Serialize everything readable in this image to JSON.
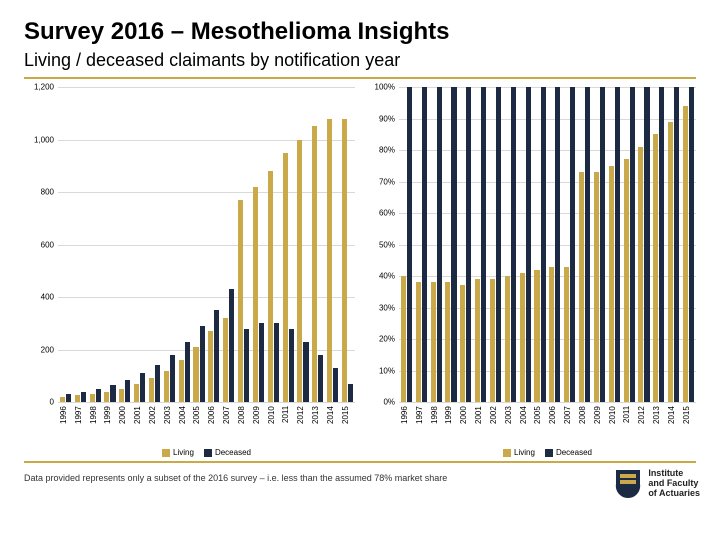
{
  "title": "Survey 2016 – Mesothelioma Insights",
  "subtitle": "Living / deceased claimants by notification year",
  "footnote": "Data provided represents only a subset of the 2016 survey – i.e. less than the assumed 78% market share",
  "logo": {
    "line1": "Institute",
    "line2": "and Faculty",
    "line3": "of Actuaries",
    "crest_fill": "#1d2a44",
    "crest_accent": "#c9a94a"
  },
  "accent_rule_color": "#c9a94a",
  "grid_color": "#d9d9d9",
  "series": {
    "living": {
      "label": "Living",
      "color": "#c9a94a"
    },
    "deceased": {
      "label": "Deceased",
      "color": "#1d2a44"
    }
  },
  "years": [
    "1996",
    "1997",
    "1998",
    "1999",
    "2000",
    "2001",
    "2002",
    "2003",
    "2004",
    "2005",
    "2006",
    "2007",
    "2008",
    "2009",
    "2010",
    "2011",
    "2012",
    "2013",
    "2014",
    "2015"
  ],
  "left_chart": {
    "type": "bar",
    "ylim": [
      0,
      1200
    ],
    "ytick_step": 200,
    "ytick_labels": [
      "0",
      "200",
      "400",
      "600",
      "800",
      "1,000",
      "1,200"
    ],
    "label_fontsize": 8,
    "background_color": "#ffffff",
    "living": [
      20,
      25,
      30,
      40,
      50,
      70,
      90,
      120,
      160,
      210,
      270,
      320,
      770,
      820,
      880,
      950,
      1000,
      1050,
      1080,
      1080
    ],
    "deceased": [
      30,
      40,
      50,
      65,
      85,
      110,
      140,
      180,
      230,
      290,
      350,
      430,
      280,
      300,
      300,
      280,
      230,
      180,
      130,
      70
    ]
  },
  "right_chart": {
    "type": "bar",
    "ylim": [
      0,
      100
    ],
    "ytick_step": 10,
    "ytick_labels": [
      "0%",
      "10%",
      "20%",
      "30%",
      "40%",
      "50%",
      "60%",
      "70%",
      "80%",
      "90%",
      "100%"
    ],
    "label_fontsize": 8,
    "background_color": "#ffffff",
    "living": [
      40,
      38,
      38,
      38,
      37,
      39,
      39,
      40,
      41,
      42,
      43,
      43,
      73,
      73,
      75,
      77,
      81,
      85,
      89,
      94
    ],
    "deceased": [
      100,
      100,
      100,
      100,
      100,
      100,
      100,
      100,
      100,
      100,
      100,
      100,
      100,
      100,
      100,
      100,
      100,
      100,
      100,
      100
    ]
  }
}
